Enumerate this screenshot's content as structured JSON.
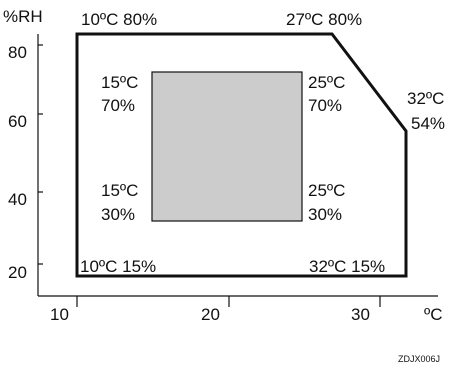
{
  "axes": {
    "y_unit": "%RH",
    "x_unit": "ºC",
    "y_ticks": [
      "80",
      "60",
      "40",
      "20"
    ],
    "x_ticks": [
      "10",
      "20",
      "30"
    ]
  },
  "outer_region": {
    "labels": {
      "top_left": "10ºC 80%",
      "top_right": "27ºC 80%",
      "right_1": "32ºC",
      "right_2": "54%",
      "bottom_left": "10ºC 15%",
      "bottom_right": "32ºC 15%"
    }
  },
  "inner_region": {
    "fill": "#cccccc",
    "labels": {
      "tl_1": "15ºC",
      "tl_2": "70%",
      "tr_1": "25ºC",
      "tr_2": "70%",
      "bl_1": "15ºC",
      "bl_2": "30%",
      "br_1": "25ºC",
      "br_2": "30%"
    }
  },
  "figure_code": "ZDJX006J"
}
